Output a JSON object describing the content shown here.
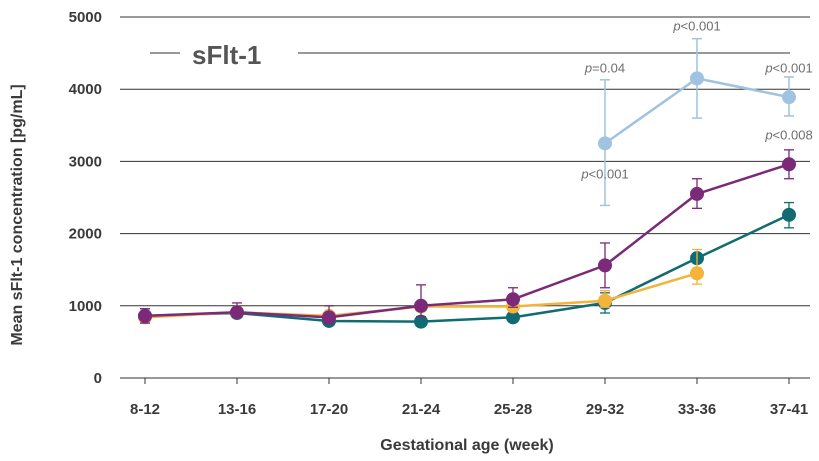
{
  "chart_data": {
    "type": "line",
    "title": "sFlt-1",
    "xlabel": "Gestational age (week)",
    "ylabel": "Mean sFlt-1 concentration [pg/mL]",
    "categories": [
      "8-12",
      "13-16",
      "17-20",
      "21-24",
      "25-28",
      "29-32",
      "33-36",
      "37-41"
    ],
    "ylim": [
      0,
      5000
    ],
    "yticks": [
      0,
      1000,
      2000,
      3000,
      4000,
      5000
    ],
    "grid": "horizontal",
    "colors": {
      "light_blue": "#9fc3e0",
      "purple": "#7a2a78",
      "teal": "#106b73",
      "yellow": "#f4b33a",
      "grid": "#333333",
      "annotation": "#6e6e6e"
    },
    "series": [
      {
        "color": "#106b73",
        "values": [
          860,
          900,
          790,
          780,
          840,
          1040,
          1660,
          2260
        ],
        "error_low": [
          null,
          null,
          null,
          null,
          null,
          900,
          null,
          2080
        ],
        "error_high": [
          null,
          null,
          null,
          null,
          null,
          1180,
          null,
          2430
        ]
      },
      {
        "color": "#f4b33a",
        "values": [
          840,
          910,
          860,
          990,
          990,
          1070,
          1450,
          null
        ],
        "error_low": [
          null,
          null,
          null,
          null,
          null,
          980,
          1300,
          null
        ],
        "error_high": [
          null,
          null,
          null,
          null,
          null,
          1210,
          1780,
          null
        ]
      },
      {
        "color": "#7a2a78",
        "values": [
          860,
          910,
          840,
          1000,
          1090,
          1560,
          2550,
          2960
        ],
        "error_low": [
          760,
          840,
          750,
          850,
          980,
          1250,
          2350,
          2760
        ],
        "error_high": [
          960,
          1040,
          1000,
          1290,
          1250,
          1870,
          2760,
          3160
        ]
      },
      {
        "color": "#9fc3e0",
        "values": [
          null,
          null,
          null,
          null,
          null,
          3250,
          4150,
          3890
        ],
        "error_low": [
          null,
          null,
          null,
          null,
          null,
          2390,
          3600,
          3630
        ],
        "error_high": [
          null,
          null,
          null,
          null,
          null,
          4130,
          4700,
          4170
        ]
      }
    ],
    "annotations": [
      {
        "p": "p",
        "rest": "=0.04",
        "category": "29-32",
        "y": 4230
      },
      {
        "p": "p",
        "rest": "<0.001",
        "category": "33-36",
        "y": 4810
      },
      {
        "p": "p",
        "rest": "<0.001",
        "category": "37-41",
        "y": 4230
      },
      {
        "p": "p",
        "rest": "<0.008",
        "category": "37-41",
        "y": 3300
      },
      {
        "p": "p",
        "rest": "<0.001",
        "category": "29-32",
        "y": 2760
      }
    ]
  }
}
